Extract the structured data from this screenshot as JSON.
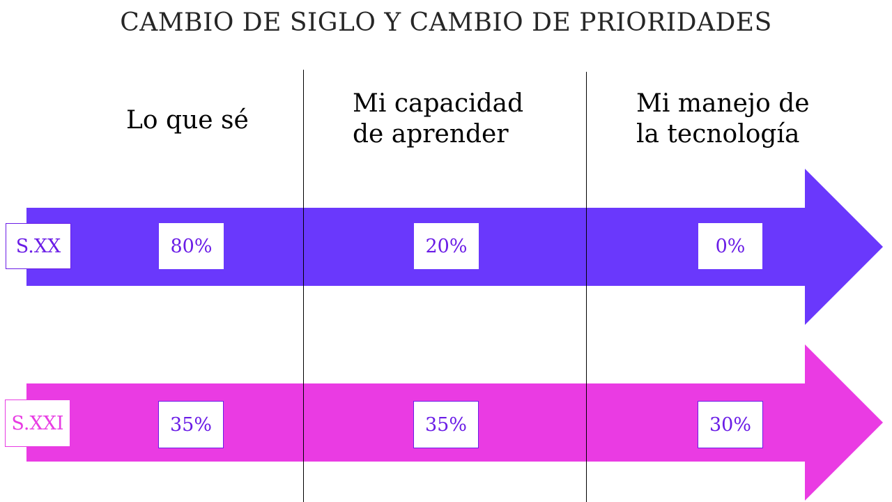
{
  "title": "CAMBIO DE SIGLO Y CAMBIO DE PRIORIDADES",
  "columns": [
    {
      "line1": "Lo que sé",
      "line2": ""
    },
    {
      "line1": "Mi capacidad",
      "line2": "de aprender"
    },
    {
      "line1": "Mi manejo de",
      "line2": "la tecnología"
    }
  ],
  "rows": [
    {
      "label": "S.XX",
      "color": "#6a38fc",
      "values": [
        "80%",
        "20%",
        "0%"
      ]
    },
    {
      "label": "S.XXI",
      "color": "#ea3be3",
      "values": [
        "35%",
        "35%",
        "30%"
      ]
    }
  ]
}
